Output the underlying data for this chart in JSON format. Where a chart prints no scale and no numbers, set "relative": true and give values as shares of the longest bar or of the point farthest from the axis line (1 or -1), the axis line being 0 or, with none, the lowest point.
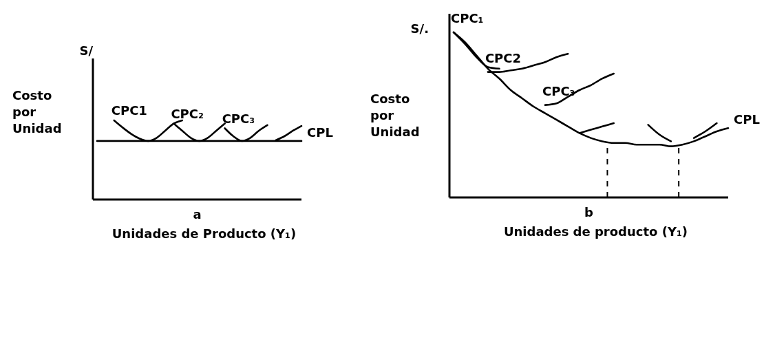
{
  "chart_data": [
    {
      "type": "line",
      "title": "a",
      "xlabel": "Unidades de Producto (Y₁)",
      "ylabel": "Costo por Unidad",
      "relative": true,
      "marker": "none",
      "categories": [
        null,
        null,
        null,
        null,
        null,
        null,
        null,
        null,
        null,
        null,
        null,
        null,
        null,
        null,
        null,
        null,
        null,
        null,
        null,
        null,
        null,
        null,
        null,
        null,
        null
      ],
      "annotations": [
        "S/"
      ],
      "series": [
        {
          "name": "CPL",
          "color": "#000000",
          "values": [
            0.74,
            0.74,
            0.74,
            0.74,
            0.74,
            0.74,
            0.74,
            0.74,
            0.74,
            0.74,
            0.74,
            0.74,
            0.74,
            0.74,
            0.74,
            0.74,
            0.74,
            0.74,
            0.74,
            0.74,
            0.74,
            0.74,
            0.74,
            0.74,
            0.74
          ]
        },
        {
          "name": "CPC1",
          "color": "#000000",
          "values": [
            null,
            null,
            1.0,
            0.91,
            0.83,
            0.77,
            0.74,
            0.78,
            0.87,
            0.96,
            1.0,
            null,
            null,
            null,
            null,
            null,
            null,
            null,
            null,
            null,
            null,
            null,
            null,
            null,
            null
          ]
        },
        {
          "name": "CPC₂",
          "color": "#000000",
          "values": [
            null,
            null,
            null,
            null,
            null,
            null,
            null,
            null,
            null,
            0.96,
            0.87,
            0.78,
            0.74,
            0.78,
            0.87,
            0.96,
            null,
            null,
            null,
            null,
            null,
            null,
            null,
            null,
            null
          ]
        },
        {
          "name": "CPC₃",
          "color": "#000000",
          "values": [
            null,
            null,
            null,
            null,
            null,
            null,
            null,
            null,
            null,
            null,
            null,
            null,
            null,
            null,
            null,
            0.9,
            0.8,
            0.74,
            0.78,
            0.87,
            0.94,
            null,
            null,
            null,
            null
          ]
        },
        {
          "color": "#000000",
          "values": [
            null,
            null,
            null,
            null,
            null,
            null,
            null,
            null,
            null,
            null,
            null,
            null,
            null,
            null,
            null,
            null,
            null,
            null,
            null,
            null,
            null,
            0.75,
            0.8,
            0.87,
            0.93
          ]
        }
      ]
    },
    {
      "type": "line",
      "title": "b",
      "xlabel": "Unidades de producto (Y₁)",
      "ylabel": "Costo por Unidad",
      "relative": true,
      "marker": "none",
      "categories": [
        null,
        null,
        null,
        null,
        null,
        null,
        null,
        null,
        null,
        null,
        null,
        null,
        null,
        null,
        null,
        null,
        null,
        null,
        null,
        null,
        null,
        null,
        null,
        null,
        null
      ],
      "annotations": [
        "S/."
      ],
      "series": [
        {
          "name": "CPL",
          "color": "#000000",
          "values": [
            1.0,
            0.94,
            0.86,
            0.78,
            0.72,
            0.65,
            0.6,
            0.55,
            0.51,
            0.47,
            0.43,
            0.39,
            0.36,
            0.34,
            0.33,
            0.33,
            0.32,
            0.32,
            0.32,
            0.31,
            0.32,
            0.34,
            0.37,
            0.4,
            0.42
          ]
        },
        {
          "name": "CPC₁",
          "color": "#000000",
          "values": [
            1.0,
            0.93,
            0.85,
            0.79,
            0.78,
            null,
            null,
            null,
            null,
            null,
            null,
            null,
            null,
            null,
            null,
            null,
            null,
            null,
            null,
            null,
            null,
            null,
            null,
            null,
            null
          ]
        },
        {
          "name": "CPC2",
          "color": "#000000",
          "values": [
            null,
            null,
            null,
            0.76,
            0.76,
            0.77,
            0.78,
            0.8,
            0.82,
            0.85,
            0.87,
            null,
            null,
            null,
            null,
            null,
            null,
            null,
            null,
            null,
            null,
            null,
            null,
            null,
            null
          ]
        },
        {
          "name": "CPC₃",
          "color": "#000000",
          "values": [
            null,
            null,
            null,
            null,
            null,
            null,
            null,
            null,
            0.56,
            0.57,
            0.61,
            0.65,
            0.68,
            0.72,
            0.75,
            null,
            null,
            null,
            null,
            null,
            null,
            null,
            null,
            null,
            null
          ]
        },
        {
          "color": "#000000",
          "values": [
            null,
            null,
            null,
            null,
            null,
            null,
            null,
            null,
            null,
            null,
            null,
            0.39,
            0.41,
            0.43,
            0.45,
            null,
            null,
            null,
            null,
            null,
            null,
            null,
            null,
            null,
            null
          ]
        },
        {
          "color": "#000000",
          "values": [
            null,
            null,
            null,
            null,
            null,
            null,
            null,
            null,
            null,
            null,
            null,
            null,
            null,
            null,
            null,
            null,
            null,
            0.44,
            0.38,
            0.34,
            null,
            null,
            null,
            null,
            null
          ]
        },
        {
          "color": "#000000",
          "values": [
            null,
            null,
            null,
            null,
            null,
            null,
            null,
            null,
            null,
            null,
            null,
            null,
            null,
            null,
            null,
            null,
            null,
            null,
            null,
            null,
            null,
            0.36,
            0.4,
            0.45,
            null
          ]
        }
      ]
    }
  ]
}
